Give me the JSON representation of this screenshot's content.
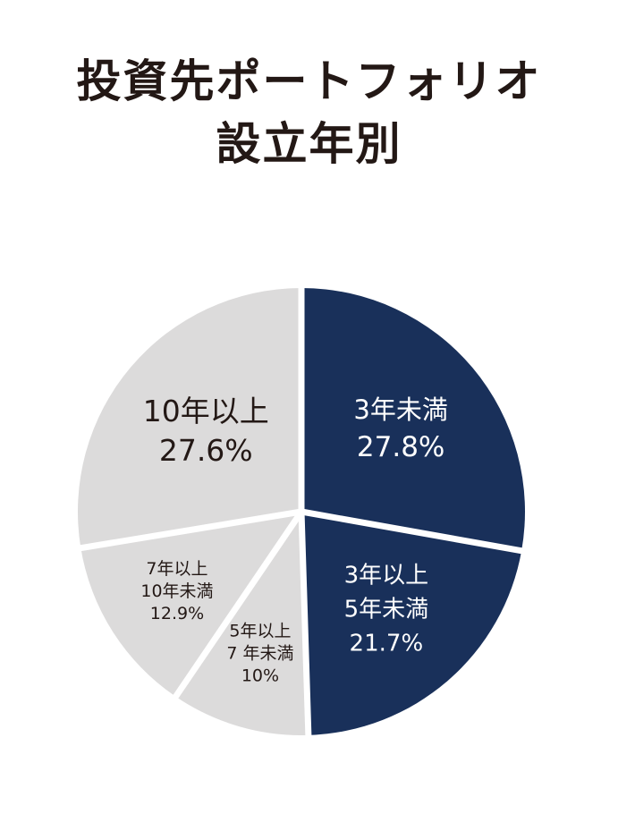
{
  "title": {
    "line1": "投資先ポートフォリオ",
    "line2": "設立年別"
  },
  "colors": {
    "dark": "#19305a",
    "light": "#dcdbdb",
    "title": "#231815",
    "separator": "#ffffff"
  },
  "chart_data": {
    "type": "pie",
    "title": "投資先ポートフォリオ 設立年別",
    "start_angle_deg": 0,
    "direction": "clockwise",
    "slices": [
      {
        "label": [
          "3年未満"
        ],
        "percent_label": "27.8%",
        "value": 27.8,
        "color": "#19305a",
        "text_color": "#ffffff"
      },
      {
        "label": [
          "3年以上",
          "5年未満"
        ],
        "percent_label": "21.7%",
        "value": 21.7,
        "color": "#19305a",
        "text_color": "#ffffff"
      },
      {
        "label": [
          "5年以上",
          "7 年未満"
        ],
        "percent_label": "10%",
        "value": 10,
        "color": "#dcdbdb",
        "text_color": "#231815"
      },
      {
        "label": [
          "7年以上",
          "10年未満"
        ],
        "percent_label": "12.9%",
        "value": 12.9,
        "color": "#dcdbdb",
        "text_color": "#231815"
      },
      {
        "label": [
          "10年以上"
        ],
        "percent_label": "27.6%",
        "value": 27.6,
        "color": "#dcdbdb",
        "text_color": "#231815"
      }
    ]
  }
}
